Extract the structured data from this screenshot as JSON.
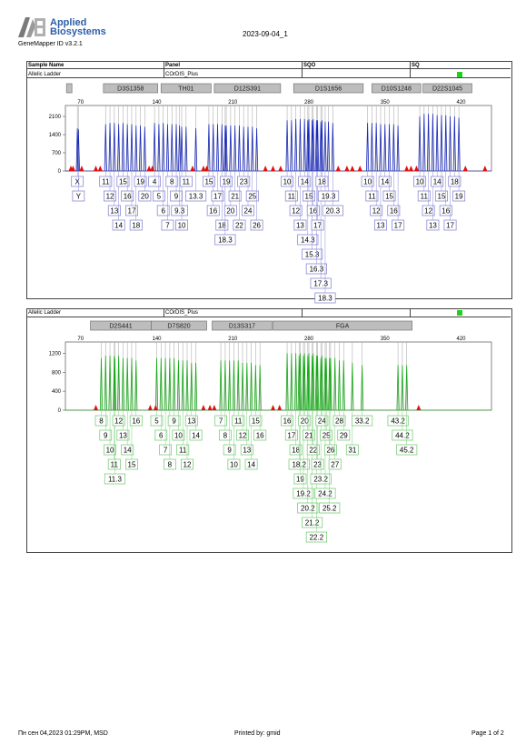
{
  "header": {
    "brand_line1": "Applied",
    "brand_line2": "Biosystems",
    "software": "GeneMapper ID v3.2.1",
    "date": "2023-09-04_1"
  },
  "info_table": {
    "col1": "Sample Name",
    "col2": "Panel",
    "col3": "SQO",
    "col4": "SQ",
    "sample": "Allelic Ladder",
    "panel": "COrDIS_Plus"
  },
  "panel2_info": {
    "sample": "Allelic Ladder",
    "panel": "COrDIS_Plus"
  },
  "colors": {
    "blue": "#1a2ab8",
    "green": "#18a818",
    "red": "#e01010",
    "gray_line": "#b0b0b0",
    "green_flag": "#1fd11f",
    "box_blue": "#8a8ad8",
    "box_green": "#7ccf7c"
  },
  "chart_data": [
    {
      "type": "line",
      "name": "blue-panel",
      "x_ticks": [
        70,
        140,
        210,
        280,
        350,
        420
      ],
      "y_ticks": [
        0,
        700,
        1400,
        2100
      ],
      "xlim": [
        56,
        448
      ],
      "ylim": [
        0,
        2450
      ],
      "markers": [
        {
          "name": "",
          "x0": 57,
          "x1": 62
        },
        {
          "name": "D3S1358",
          "x0": 91,
          "x1": 141
        },
        {
          "name": "TH01",
          "x0": 144,
          "x1": 190
        },
        {
          "name": "D12S391",
          "x0": 193,
          "x1": 254
        },
        {
          "name": "D1S1656",
          "x0": 266,
          "x1": 330
        },
        {
          "name": "D10S1248",
          "x0": 338,
          "x1": 383
        },
        {
          "name": "D22S1045",
          "x0": 385,
          "x1": 430
        }
      ],
      "peaks": [
        {
          "x": 67,
          "y": 1650,
          "label": "X"
        },
        {
          "x": 68,
          "y": 1600,
          "label": "Y"
        },
        {
          "x": 93,
          "y": 1800,
          "label": "11"
        },
        {
          "x": 97,
          "y": 1850,
          "label": "12"
        },
        {
          "x": 101,
          "y": 1850,
          "label": "13"
        },
        {
          "x": 105,
          "y": 1800,
          "label": "14"
        },
        {
          "x": 109,
          "y": 1850,
          "label": "15"
        },
        {
          "x": 113,
          "y": 1800,
          "label": "16"
        },
        {
          "x": 117,
          "y": 1800,
          "label": "17"
        },
        {
          "x": 121,
          "y": 1750,
          "label": "18"
        },
        {
          "x": 125,
          "y": 1750,
          "label": "19"
        },
        {
          "x": 129,
          "y": 1700,
          "label": "20"
        },
        {
          "x": 138,
          "y": 1850,
          "label": "4"
        },
        {
          "x": 142,
          "y": 1800,
          "label": "5"
        },
        {
          "x": 146,
          "y": 1850,
          "label": "6"
        },
        {
          "x": 150,
          "y": 1800,
          "label": "7"
        },
        {
          "x": 154,
          "y": 1800,
          "label": "8"
        },
        {
          "x": 158,
          "y": 1800,
          "label": "9"
        },
        {
          "x": 161,
          "y": 1750,
          "label": "9.3"
        },
        {
          "x": 163,
          "y": 1700,
          "label": "10"
        },
        {
          "x": 167,
          "y": 1700,
          "label": "11"
        },
        {
          "x": 176,
          "y": 1650,
          "label": "13.3"
        },
        {
          "x": 188,
          "y": 1800,
          "label": "15"
        },
        {
          "x": 192,
          "y": 1800,
          "label": "16"
        },
        {
          "x": 196,
          "y": 1800,
          "label": "17"
        },
        {
          "x": 200,
          "y": 1800,
          "label": "18"
        },
        {
          "x": 203,
          "y": 1750,
          "label": "18.3"
        },
        {
          "x": 204,
          "y": 1750,
          "label": "19"
        },
        {
          "x": 208,
          "y": 1750,
          "label": "20"
        },
        {
          "x": 212,
          "y": 1750,
          "label": "21"
        },
        {
          "x": 216,
          "y": 1750,
          "label": "22"
        },
        {
          "x": 220,
          "y": 1700,
          "label": "23"
        },
        {
          "x": 224,
          "y": 1700,
          "label": "24"
        },
        {
          "x": 228,
          "y": 1700,
          "label": "25"
        },
        {
          "x": 232,
          "y": 1650,
          "label": "26"
        },
        {
          "x": 260,
          "y": 1950,
          "label": "10"
        },
        {
          "x": 264,
          "y": 1950,
          "label": "11"
        },
        {
          "x": 268,
          "y": 2000,
          "label": "12"
        },
        {
          "x": 272,
          "y": 2000,
          "label": "13"
        },
        {
          "x": 276,
          "y": 2000,
          "label": "14"
        },
        {
          "x": 279,
          "y": 1950,
          "label": "14.3"
        },
        {
          "x": 280,
          "y": 2000,
          "label": "15"
        },
        {
          "x": 283,
          "y": 1950,
          "label": "15.3"
        },
        {
          "x": 284,
          "y": 2000,
          "label": "16"
        },
        {
          "x": 287,
          "y": 1950,
          "label": "16.3"
        },
        {
          "x": 288,
          "y": 1950,
          "label": "17"
        },
        {
          "x": 291,
          "y": 1900,
          "label": "17.3"
        },
        {
          "x": 292,
          "y": 1950,
          "label": "18"
        },
        {
          "x": 295,
          "y": 1900,
          "label": "18.3"
        },
        {
          "x": 298,
          "y": 1900,
          "label": "19.3"
        },
        {
          "x": 302,
          "y": 1850,
          "label": "20.3"
        },
        {
          "x": 334,
          "y": 1850,
          "label": "10"
        },
        {
          "x": 338,
          "y": 1850,
          "label": "11"
        },
        {
          "x": 342,
          "y": 1850,
          "label": "12"
        },
        {
          "x": 346,
          "y": 1800,
          "label": "13"
        },
        {
          "x": 350,
          "y": 1800,
          "label": "14"
        },
        {
          "x": 354,
          "y": 1800,
          "label": "15"
        },
        {
          "x": 358,
          "y": 1800,
          "label": "16"
        },
        {
          "x": 362,
          "y": 1750,
          "label": "17"
        },
        {
          "x": 382,
          "y": 2100,
          "label": "10"
        },
        {
          "x": 386,
          "y": 2200,
          "label": "11"
        },
        {
          "x": 390,
          "y": 2200,
          "label": "12"
        },
        {
          "x": 394,
          "y": 2200,
          "label": "13"
        },
        {
          "x": 398,
          "y": 2150,
          "label": "14"
        },
        {
          "x": 402,
          "y": 2150,
          "label": "15"
        },
        {
          "x": 406,
          "y": 2150,
          "label": "16"
        },
        {
          "x": 410,
          "y": 2100,
          "label": "17"
        },
        {
          "x": 414,
          "y": 2100,
          "label": "18"
        },
        {
          "x": 418,
          "y": 2050,
          "label": "19"
        }
      ],
      "red_peaks": [
        61,
        63,
        71,
        84,
        88,
        133,
        136,
        173,
        183,
        186,
        240,
        247,
        254,
        307,
        315,
        320,
        327,
        370,
        374,
        379,
        424,
        442
      ]
    },
    {
      "type": "line",
      "name": "green-panel",
      "x_ticks": [
        70,
        140,
        210,
        280,
        350,
        420
      ],
      "y_ticks": [
        0,
        400,
        800,
        1200
      ],
      "xlim": [
        56,
        448
      ],
      "ylim": [
        0,
        1400
      ],
      "markers": [
        {
          "name": "D2S441",
          "x0": 79,
          "x1": 135
        },
        {
          "name": "D7S820",
          "x0": 135,
          "x1": 186
        },
        {
          "name": "D13S317",
          "x0": 191,
          "x1": 246
        },
        {
          "name": "FGA",
          "x0": 247,
          "x1": 375
        }
      ],
      "peaks": [
        {
          "x": 89,
          "y": 1100,
          "label": "8"
        },
        {
          "x": 93,
          "y": 1150,
          "label": "9"
        },
        {
          "x": 97,
          "y": 1150,
          "label": "10"
        },
        {
          "x": 101,
          "y": 1150,
          "label": "11"
        },
        {
          "x": 101.5,
          "y": 1100,
          "label": "11.3"
        },
        {
          "x": 105,
          "y": 1150,
          "label": "12"
        },
        {
          "x": 109,
          "y": 1100,
          "label": "13"
        },
        {
          "x": 113,
          "y": 1100,
          "label": "14"
        },
        {
          "x": 117,
          "y": 1100,
          "label": "15"
        },
        {
          "x": 121,
          "y": 1050,
          "label": "16"
        },
        {
          "x": 140,
          "y": 1100,
          "label": "5"
        },
        {
          "x": 144,
          "y": 1100,
          "label": "6"
        },
        {
          "x": 148,
          "y": 1100,
          "label": "7"
        },
        {
          "x": 152,
          "y": 1100,
          "label": "8"
        },
        {
          "x": 156,
          "y": 1100,
          "label": "9"
        },
        {
          "x": 160,
          "y": 1050,
          "label": "10"
        },
        {
          "x": 164,
          "y": 1050,
          "label": "11"
        },
        {
          "x": 168,
          "y": 1050,
          "label": "12"
        },
        {
          "x": 172,
          "y": 1000,
          "label": "13"
        },
        {
          "x": 176,
          "y": 1000,
          "label": "14"
        },
        {
          "x": 199,
          "y": 1050,
          "label": "7"
        },
        {
          "x": 203,
          "y": 1050,
          "label": "8"
        },
        {
          "x": 207,
          "y": 1050,
          "label": "9"
        },
        {
          "x": 211,
          "y": 1050,
          "label": "10"
        },
        {
          "x": 215,
          "y": 1050,
          "label": "11"
        },
        {
          "x": 219,
          "y": 1000,
          "label": "12"
        },
        {
          "x": 223,
          "y": 1000,
          "label": "13"
        },
        {
          "x": 227,
          "y": 1000,
          "label": "14"
        },
        {
          "x": 231,
          "y": 950,
          "label": "15"
        },
        {
          "x": 235,
          "y": 950,
          "label": "16"
        },
        {
          "x": 260,
          "y": 1200,
          "label": "16"
        },
        {
          "x": 264,
          "y": 1200,
          "label": "17"
        },
        {
          "x": 268,
          "y": 1200,
          "label": "18"
        },
        {
          "x": 271,
          "y": 1150,
          "label": "18.2"
        },
        {
          "x": 272,
          "y": 1200,
          "label": "19"
        },
        {
          "x": 275,
          "y": 1150,
          "label": "19.2"
        },
        {
          "x": 276,
          "y": 1200,
          "label": "20"
        },
        {
          "x": 279,
          "y": 1150,
          "label": "20.2"
        },
        {
          "x": 280,
          "y": 1200,
          "label": "21"
        },
        {
          "x": 283,
          "y": 1150,
          "label": "21.2"
        },
        {
          "x": 284,
          "y": 1200,
          "label": "22"
        },
        {
          "x": 287,
          "y": 1150,
          "label": "22.2"
        },
        {
          "x": 288,
          "y": 1150,
          "label": "23"
        },
        {
          "x": 291,
          "y": 1100,
          "label": "23.2"
        },
        {
          "x": 292,
          "y": 1150,
          "label": "24"
        },
        {
          "x": 295,
          "y": 1100,
          "label": "24.2"
        },
        {
          "x": 296,
          "y": 1100,
          "label": "25"
        },
        {
          "x": 299,
          "y": 1100,
          "label": "25.2"
        },
        {
          "x": 300,
          "y": 1100,
          "label": "26"
        },
        {
          "x": 304,
          "y": 1100,
          "label": "27"
        },
        {
          "x": 308,
          "y": 1050,
          "label": "28"
        },
        {
          "x": 312,
          "y": 1050,
          "label": "29"
        },
        {
          "x": 320,
          "y": 1000,
          "label": "31"
        },
        {
          "x": 329,
          "y": 950,
          "label": "33.2"
        },
        {
          "x": 362,
          "y": 950,
          "label": "43.2"
        },
        {
          "x": 366,
          "y": 950,
          "label": "44.2"
        },
        {
          "x": 370,
          "y": 950,
          "label": "45.2"
        }
      ],
      "red_peaks": [
        84,
        134,
        139,
        183,
        189,
        193,
        247,
        253,
        381
      ]
    }
  ],
  "footer": {
    "left": "Пн сен 04,2023 01:29PM, MSD",
    "center": "Printed by: gmid",
    "right": "Page 1 of 2"
  }
}
